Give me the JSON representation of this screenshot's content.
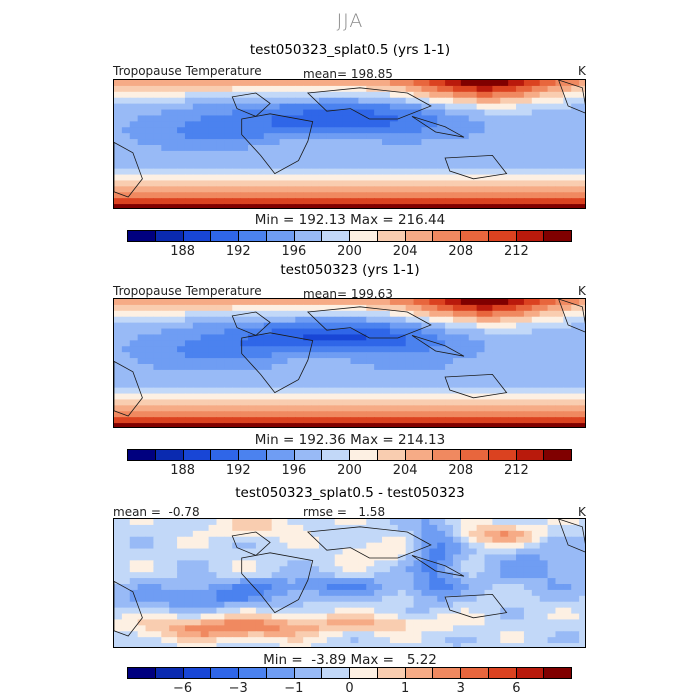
{
  "figure": {
    "season": "JJA",
    "panels": [
      {
        "title": "test050323_splat0.5 (yrs 1-1)",
        "left_label": "Tropopause Temperature",
        "center_label": "mean= 198.85",
        "unit": "K",
        "minmax": "Min = 192.13 Max = 216.44",
        "colorbar_ticks": [
          "188",
          "192",
          "196",
          "200",
          "204",
          "208",
          "212"
        ],
        "colorbar_levels": 16
      },
      {
        "title": "test050323 (yrs 1-1)",
        "left_label": "Tropopause Temperature",
        "center_label": "mean= 199.63",
        "unit": "K",
        "minmax": "Min = 192.36 Max = 214.13",
        "colorbar_ticks": [
          "188",
          "192",
          "196",
          "200",
          "204",
          "208",
          "212"
        ],
        "colorbar_levels": 16
      },
      {
        "title": "test050323_splat0.5 - test050323",
        "left_label": "mean =  -0.78",
        "center_label": "rmse =   1.58",
        "unit": "K",
        "minmax": "Min =  -3.89 Max =   5.22",
        "colorbar_ticks": [
          "−6",
          "−3",
          "−1",
          "0",
          "1",
          "3",
          "6"
        ],
        "colorbar_levels": 16
      }
    ],
    "colors": [
      "#00007f",
      "#0a2ab0",
      "#1846d6",
      "#2f66e8",
      "#4b82ef",
      "#6f9df3",
      "#98baf6",
      "#c2d8f8",
      "#fdf0e3",
      "#f9cdb0",
      "#f6ab86",
      "#f08960",
      "#e8663d",
      "#db4220",
      "#b91a0c",
      "#800000"
    ]
  },
  "chart_data": [
    {
      "type": "heatmap",
      "title": "test050323_splat0.5 (yrs 1-1)",
      "variable": "Tropopause Temperature",
      "unit": "K",
      "mean": 198.85,
      "min": 192.13,
      "max": 216.44,
      "colorbar_ticks": [
        188,
        192,
        196,
        200,
        204,
        208,
        212
      ]
    },
    {
      "type": "heatmap",
      "title": "test050323 (yrs 1-1)",
      "variable": "Tropopause Temperature",
      "unit": "K",
      "mean": 199.63,
      "min": 192.36,
      "max": 214.13,
      "colorbar_ticks": [
        188,
        192,
        196,
        200,
        204,
        208,
        212
      ]
    },
    {
      "type": "heatmap",
      "title": "test050323_splat0.5 - test050323",
      "unit": "K",
      "mean": -0.78,
      "rmse": 1.58,
      "min": -3.89,
      "max": 5.22,
      "colorbar_ticks": [
        -6,
        -3,
        -1,
        0,
        1,
        3,
        6
      ]
    }
  ]
}
